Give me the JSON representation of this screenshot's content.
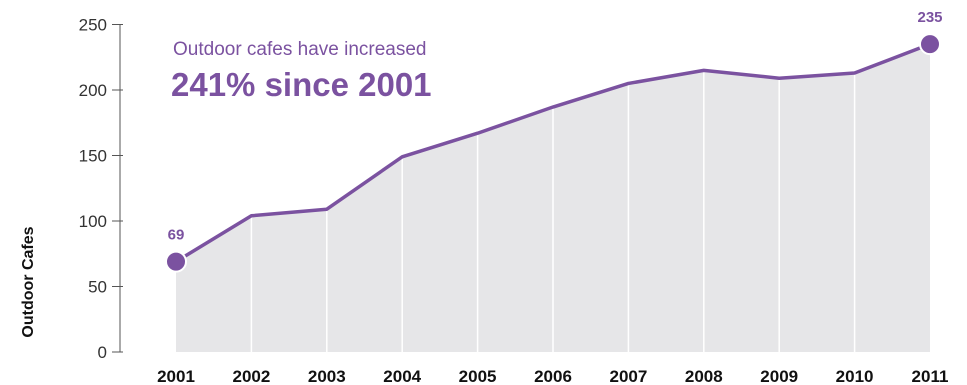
{
  "colors": {
    "accent": "#7b52a0",
    "area": "#e6e6e8",
    "grid": "#ffffff",
    "axis": "#555555"
  },
  "annotation": {
    "line1": "Outdoor cafes have increased",
    "line2": "241% since 2001"
  },
  "chart_data": {
    "type": "area",
    "ylabel": "Outdoor Cafes",
    "xlabel": "",
    "x": [
      "2001",
      "2002",
      "2003",
      "2004",
      "2005",
      "2006",
      "2007",
      "2008",
      "2009",
      "2010",
      "2011"
    ],
    "series": [
      {
        "values": [
          69,
          104,
          109,
          149,
          167,
          187,
          205,
          215,
          209,
          213,
          235
        ]
      }
    ],
    "ylim": [
      0,
      250
    ],
    "yticks": [
      0,
      50,
      100,
      150,
      200,
      250
    ],
    "grid": "vertical lines at each year",
    "data_labels": [
      {
        "x": "2001",
        "text": "69"
      },
      {
        "x": "2011",
        "text": "235"
      }
    ]
  }
}
